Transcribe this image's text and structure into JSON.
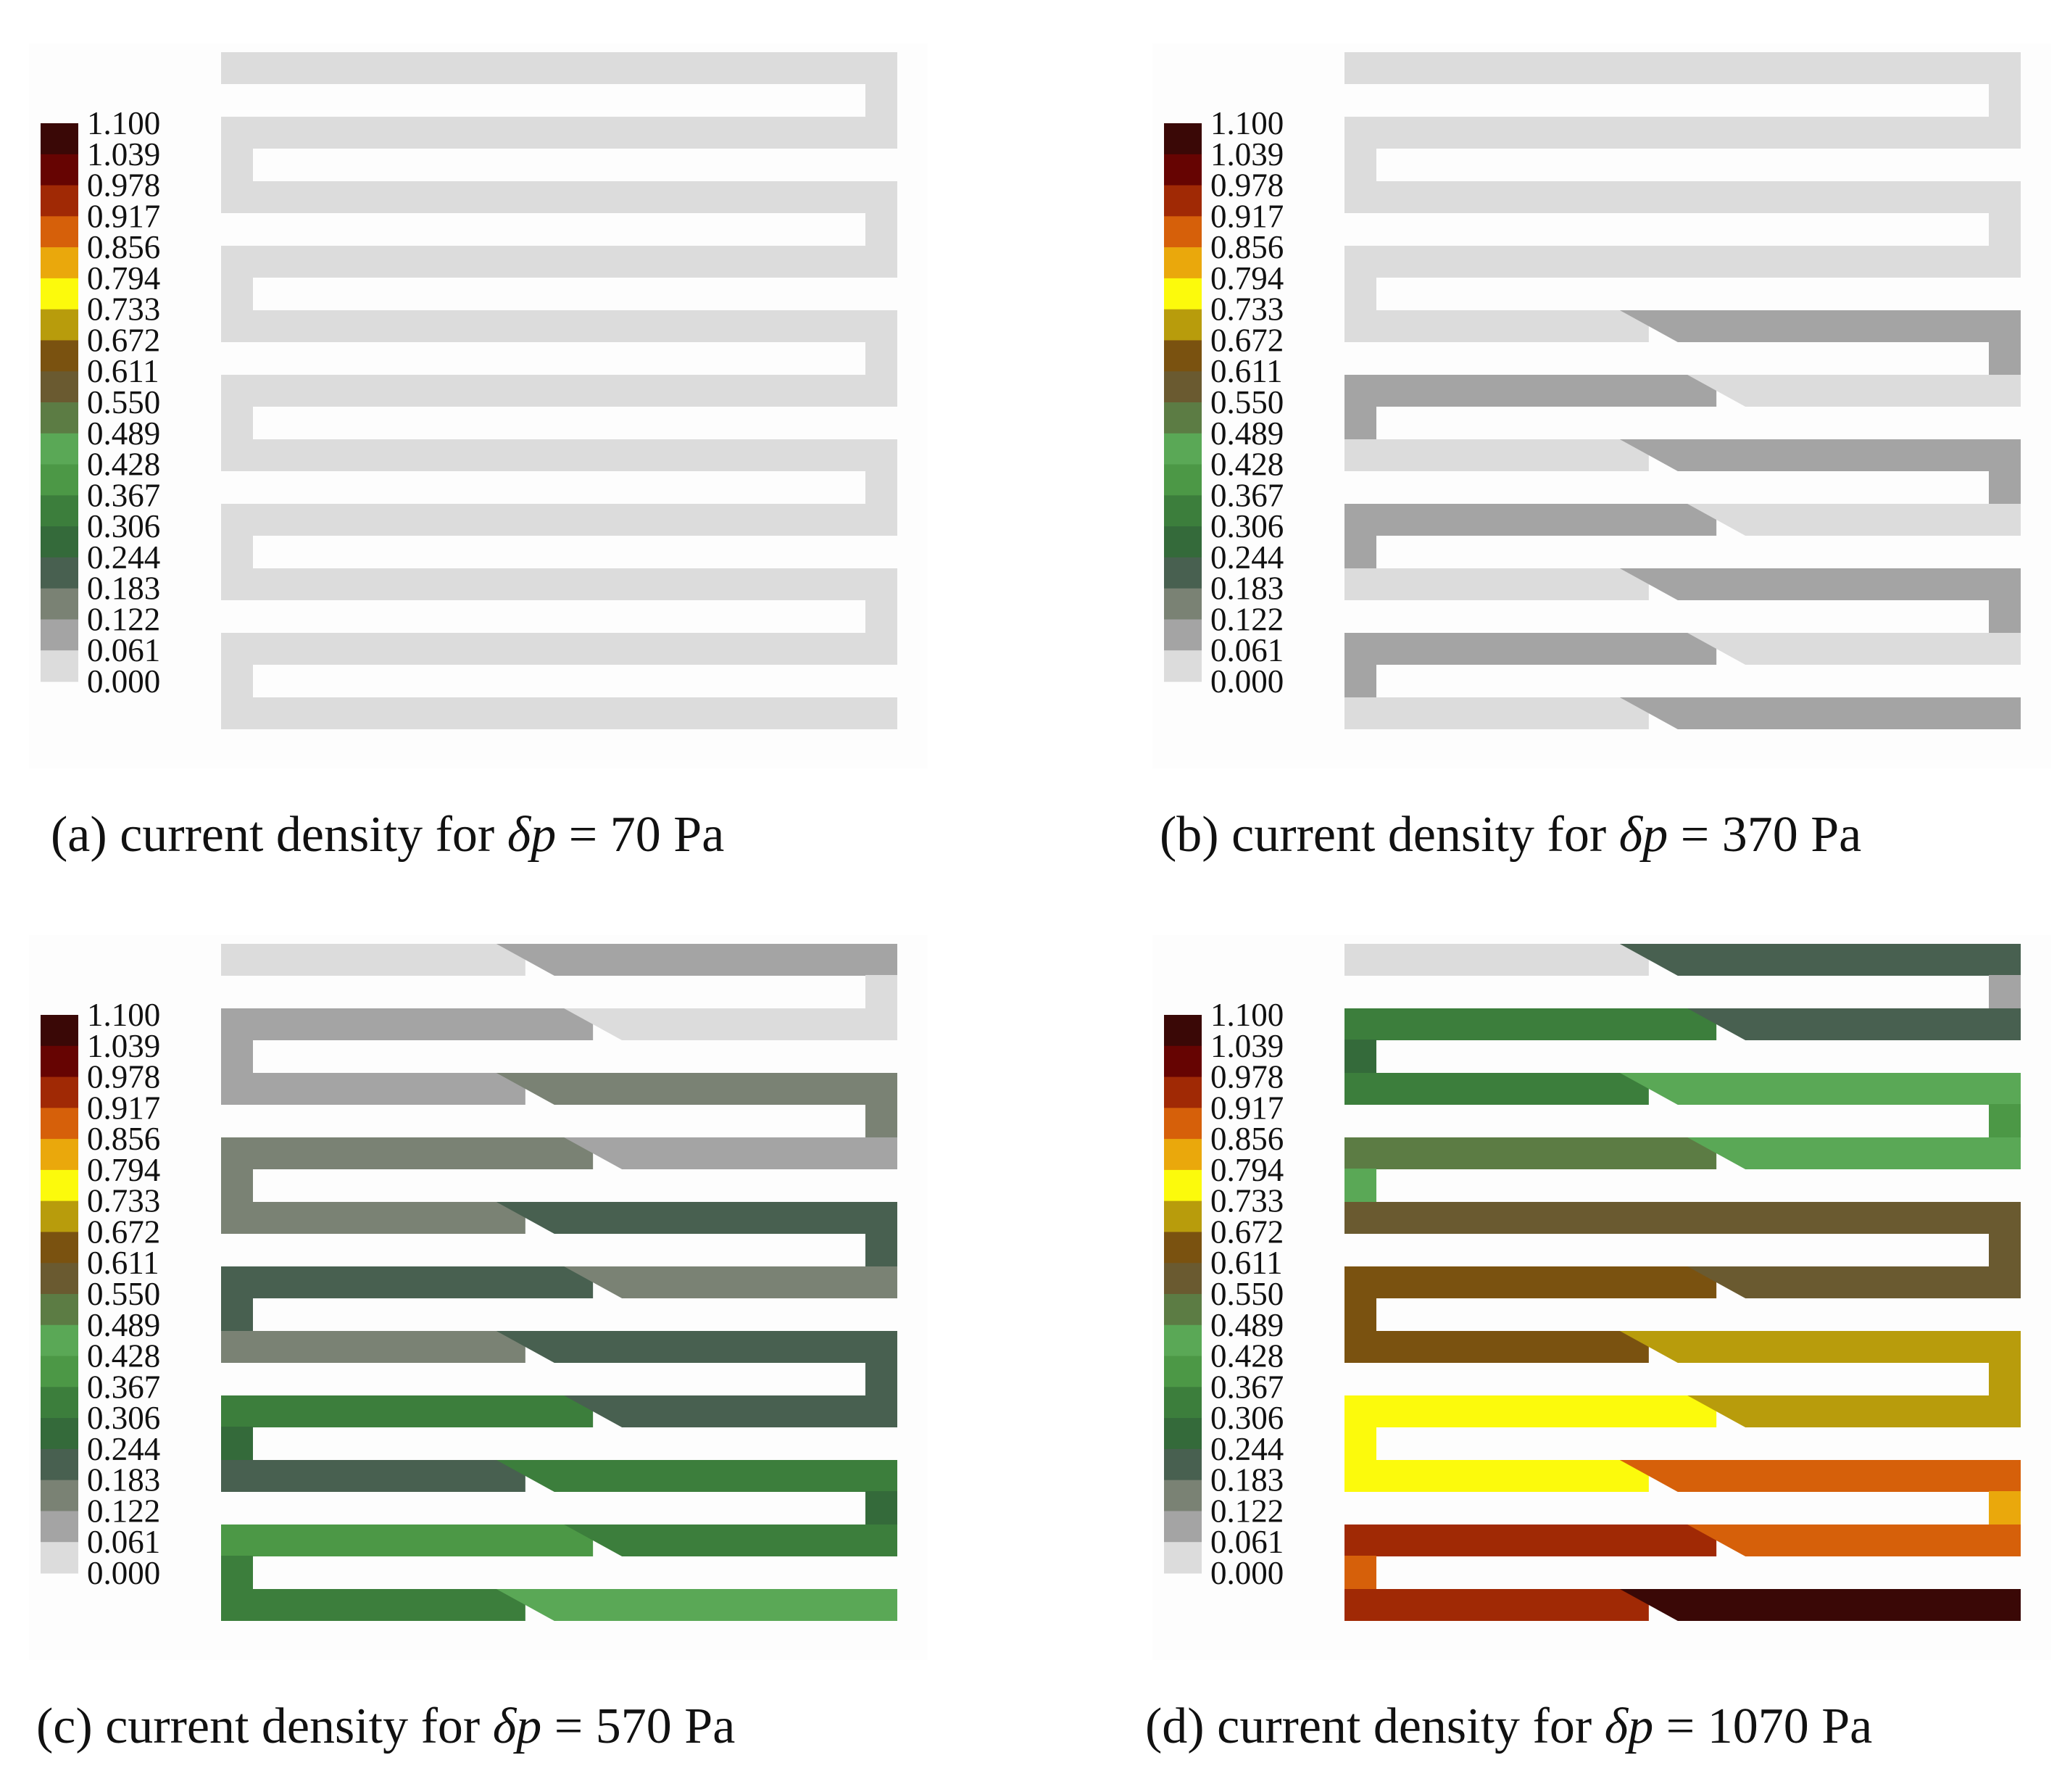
{
  "figure": {
    "caption_prefix": "current density for",
    "caption_symbol": "δp",
    "caption_equals": "=",
    "caption_unit": "Pa"
  },
  "colorbar": {
    "ticks": [
      "1.100",
      "1.039",
      "0.978",
      "0.917",
      "0.856",
      "0.794",
      "0.733",
      "0.672",
      "0.611",
      "0.550",
      "0.489",
      "0.428",
      "0.367",
      "0.306",
      "0.244",
      "0.183",
      "0.122",
      "0.061",
      "0.000"
    ],
    "colors_top_to_bottom": [
      "#3a0806",
      "#660402",
      "#a02905",
      "#d6600a",
      "#eaa80c",
      "#fcfa0c",
      "#b89c0c",
      "#7a5210",
      "#6a5a30",
      "#5c7c44",
      "#5aa856",
      "#4c9846",
      "#3c7e3c",
      "#346a3a",
      "#486050",
      "#7a8274",
      "#a4a4a4",
      "#dcdcdc"
    ]
  },
  "chart_data": [
    {
      "type": "heatmap",
      "panel_label": "(a)",
      "delta_p": "70",
      "title": "(a) current density for δp = 70 Pa",
      "colorbar_range": [
        0,
        1.1
      ],
      "channel_passes_top_to_bottom": [
        {
          "pass": 1,
          "value_range": [
            0.0,
            0.061
          ]
        },
        {
          "pass": 2,
          "value_range": [
            0.0,
            0.061
          ]
        },
        {
          "pass": 3,
          "value_range": [
            0.0,
            0.061
          ]
        },
        {
          "pass": 4,
          "value_range": [
            0.0,
            0.061
          ]
        },
        {
          "pass": 5,
          "value_range": [
            0.0,
            0.061
          ]
        },
        {
          "pass": 6,
          "value_range": [
            0.0,
            0.061
          ]
        },
        {
          "pass": 7,
          "value_range": [
            0.0,
            0.061
          ]
        },
        {
          "pass": 8,
          "value_range": [
            0.0,
            0.061
          ]
        },
        {
          "pass": 9,
          "value_range": [
            0.0,
            0.061
          ]
        },
        {
          "pass": 10,
          "value_range": [
            0.0,
            0.061
          ]
        },
        {
          "pass": 11,
          "value_range": [
            0.0,
            0.061
          ]
        }
      ]
    },
    {
      "type": "heatmap",
      "panel_label": "(b)",
      "delta_p": "370",
      "title": "(b) current density for δp = 370 Pa",
      "colorbar_range": [
        0,
        1.1
      ],
      "channel_passes_top_to_bottom": [
        {
          "pass": 1,
          "value_range": [
            0.0,
            0.061
          ]
        },
        {
          "pass": 2,
          "value_range": [
            0.0,
            0.061
          ]
        },
        {
          "pass": 3,
          "value_range": [
            0.0,
            0.061
          ]
        },
        {
          "pass": 4,
          "value_range": [
            0.0,
            0.061
          ]
        },
        {
          "pass": 5,
          "value_range": [
            0.061,
            0.122
          ]
        },
        {
          "pass": 6,
          "value_range": [
            0.061,
            0.122
          ]
        },
        {
          "pass": 7,
          "value_range": [
            0.061,
            0.122
          ]
        },
        {
          "pass": 8,
          "value_range": [
            0.061,
            0.122
          ]
        },
        {
          "pass": 9,
          "value_range": [
            0.061,
            0.122
          ]
        },
        {
          "pass": 10,
          "value_range": [
            0.061,
            0.122
          ]
        },
        {
          "pass": 11,
          "value_range": [
            0.061,
            0.122
          ]
        }
      ]
    },
    {
      "type": "heatmap",
      "panel_label": "(c)",
      "delta_p": "570",
      "title": "(c) current density for δp = 570 Pa",
      "colorbar_range": [
        0,
        1.1
      ],
      "channel_passes_top_to_bottom": [
        {
          "pass": 1,
          "value_range": [
            0.0,
            0.122
          ]
        },
        {
          "pass": 2,
          "value_range": [
            0.061,
            0.122
          ]
        },
        {
          "pass": 3,
          "value_range": [
            0.122,
            0.183
          ]
        },
        {
          "pass": 4,
          "value_range": [
            0.122,
            0.183
          ]
        },
        {
          "pass": 5,
          "value_range": [
            0.183,
            0.244
          ]
        },
        {
          "pass": 6,
          "value_range": [
            0.183,
            0.244
          ]
        },
        {
          "pass": 7,
          "value_range": [
            0.183,
            0.244
          ]
        },
        {
          "pass": 8,
          "value_range": [
            0.244,
            0.306
          ]
        },
        {
          "pass": 9,
          "value_range": [
            0.244,
            0.306
          ]
        },
        {
          "pass": 10,
          "value_range": [
            0.306,
            0.367
          ]
        },
        {
          "pass": 11,
          "value_range": [
            0.306,
            0.428
          ]
        }
      ]
    },
    {
      "type": "heatmap",
      "panel_label": "(d)",
      "delta_p": "1070",
      "title": "(d) current density for δp = 1070 Pa",
      "colorbar_range": [
        0,
        1.1
      ],
      "channel_passes_top_to_bottom": [
        {
          "pass": 1,
          "value_range": [
            0.0,
            0.244
          ]
        },
        {
          "pass": 2,
          "value_range": [
            0.244,
            0.306
          ]
        },
        {
          "pass": 3,
          "value_range": [
            0.306,
            0.428
          ]
        },
        {
          "pass": 4,
          "value_range": [
            0.428,
            0.489
          ]
        },
        {
          "pass": 5,
          "value_range": [
            0.55,
            0.611
          ]
        },
        {
          "pass": 6,
          "value_range": [
            0.611,
            0.672
          ]
        },
        {
          "pass": 7,
          "value_range": [
            0.672,
            0.733
          ]
        },
        {
          "pass": 8,
          "value_range": [
            0.733,
            0.794
          ]
        },
        {
          "pass": 9,
          "value_range": [
            0.794,
            0.856
          ]
        },
        {
          "pass": 10,
          "value_range": [
            0.856,
            0.917
          ]
        },
        {
          "pass": 11,
          "value_range": [
            0.917,
            1.1
          ]
        }
      ]
    }
  ]
}
